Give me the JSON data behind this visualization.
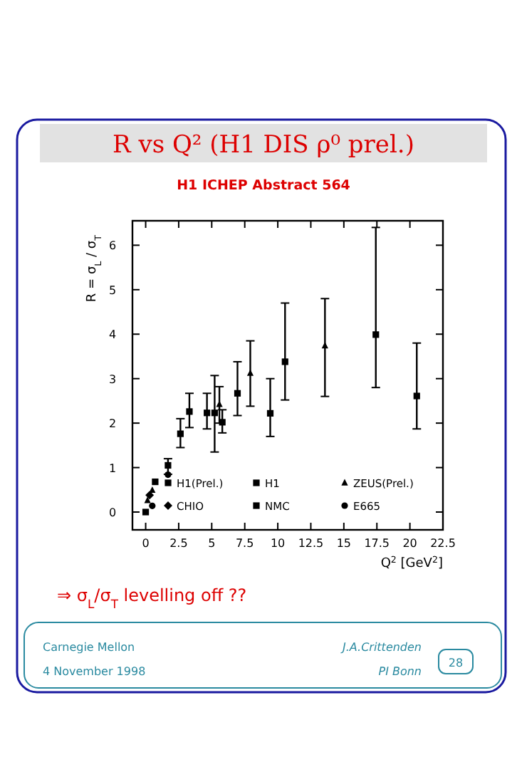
{
  "chart_data": {
    "type": "scatter",
    "title": "R vs Q² (H1 DIS ρ⁰ prel.)",
    "subtitle": "H1 ICHEP Abstract 564",
    "xlabel": "Q$^{2}$  [GeV$^{2}$]",
    "ylabel": "R = σ$_{L}$ / σ$_{T}$",
    "xlim": [
      -1,
      22.5
    ],
    "ylim": [
      -0.4,
      6.55
    ],
    "xticks": [
      0,
      2.5,
      5,
      7.5,
      10,
      12.5,
      15,
      17.5,
      20,
      22.5
    ],
    "yticks": [
      0,
      1,
      2,
      3,
      4,
      5,
      6
    ],
    "legend": "bottom",
    "grid": false,
    "series": [
      {
        "name": "H1(Prel.)",
        "color": "#000000",
        "marker": "square",
        "x": [
          0.72,
          1.69,
          2.63,
          4.64,
          6.95,
          10.55,
          20.52
        ],
        "values": [
          0.68,
          1.05,
          1.76,
          2.23,
          2.67,
          3.38,
          2.61
        ],
        "errors": [
          null,
          [
            0.85,
            1.2
          ],
          [
            1.45,
            2.1
          ],
          [
            1.87,
            2.67
          ],
          [
            2.17,
            3.38
          ],
          [
            2.52,
            4.7
          ],
          [
            1.87,
            3.8
          ]
        ]
      },
      {
        "name": "H1",
        "color": "#000000",
        "marker": "square",
        "x": [
          0,
          3.31,
          5.22,
          9.43,
          17.42
        ],
        "values": [
          0,
          2.26,
          2.23,
          2.22,
          3.99
        ],
        "errors": [
          null,
          [
            1.9,
            2.67
          ],
          [
            1.35,
            3.07
          ],
          [
            1.7,
            3.0
          ],
          [
            2.8,
            6.4
          ]
        ]
      },
      {
        "name": "ZEUS(Prel.)",
        "color": "#000000",
        "marker": "triangle",
        "x": [
          0.14,
          0.5,
          5.58,
          7.92,
          13.57
        ],
        "values": [
          0.26,
          0.49,
          2.42,
          3.12,
          3.74
        ],
        "errors": [
          null,
          null,
          [
            2.0,
            2.82
          ],
          [
            2.38,
            3.85
          ],
          [
            2.6,
            4.8
          ]
        ]
      },
      {
        "name": "CHIO",
        "color": "#000000",
        "marker": "diamond",
        "x": [
          0.3
        ],
        "values": [
          0.38
        ]
      },
      {
        "name": "NMC",
        "color": "#000000",
        "marker": "square",
        "x": [
          5.8
        ],
        "values": [
          2.02
        ],
        "errors": [
          [
            1.78,
            2.3
          ]
        ]
      },
      {
        "name": "E665",
        "color": "#000000",
        "marker": "circle",
        "x": [
          0.5,
          1.69
        ],
        "values": [
          0.14,
          0.84
        ]
      }
    ],
    "annotations": [
      "⇒ σ$_{L}$/σ$_{T}$ levelling off ??",
      "Carnegie Mellon",
      "4 November 1998",
      "J.A.Crittenden",
      "PI Bonn",
      "28"
    ]
  }
}
